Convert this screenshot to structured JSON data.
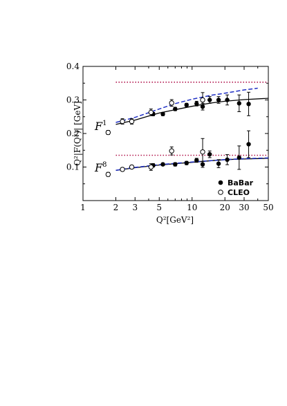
{
  "chart_data": {
    "type": "scatter",
    "xscale": "log",
    "xlim": [
      1,
      50
    ],
    "ylim": [
      0,
      0.4
    ],
    "x_ticks": [
      1,
      2,
      3,
      5,
      10,
      20,
      30,
      50
    ],
    "x_tick_labels": [
      "1",
      "2",
      "3",
      "5",
      "10",
      "20",
      "30",
      "50"
    ],
    "y_ticks": [
      0.1,
      0.2,
      0.3,
      0.4
    ],
    "y_tick_labels": [
      "0.1",
      "0.2",
      "0.3",
      "0.4"
    ],
    "xlabel": "Q²[GeV²]",
    "ylabel": "Q²|F(Q²)| [GeV]",
    "annotations": [
      {
        "base": "F",
        "sup": "1",
        "text": "F¹"
      },
      {
        "base": "F",
        "sup": "8",
        "text": "F⁸"
      }
    ],
    "legend": {
      "placement": "lower-right",
      "entries": [
        {
          "label": "BaBar",
          "marker": "filled-circle"
        },
        {
          "label": "CLEO",
          "marker": "open-circle"
        }
      ]
    },
    "series": [
      {
        "name": "BaBar",
        "marker": "filled-circle",
        "group": "F1",
        "points": [
          {
            "x": 4.4,
            "y": 0.258,
            "err": 0.005
          },
          {
            "x": 5.4,
            "y": 0.258,
            "err": 0.005
          },
          {
            "x": 7.0,
            "y": 0.273,
            "err": 0.005
          },
          {
            "x": 8.9,
            "y": 0.285,
            "err": 0.005
          },
          {
            "x": 11.0,
            "y": 0.289,
            "err": 0.007
          },
          {
            "x": 12.5,
            "y": 0.28,
            "err": 0.01
          },
          {
            "x": 14.5,
            "y": 0.3,
            "err": 0.01
          },
          {
            "x": 17.5,
            "y": 0.3,
            "err": 0.01
          },
          {
            "x": 21.0,
            "y": 0.3,
            "err": 0.015
          },
          {
            "x": 27.0,
            "y": 0.29,
            "err": 0.025
          },
          {
            "x": 33.0,
            "y": 0.288,
            "err": 0.035
          }
        ]
      },
      {
        "name": "CLEO",
        "marker": "open-circle",
        "group": "F1",
        "points": [
          {
            "x": 1.7,
            "y": 0.203,
            "err": 0.006
          },
          {
            "x": 2.3,
            "y": 0.236,
            "err": 0.008
          },
          {
            "x": 2.8,
            "y": 0.236,
            "err": 0.008
          },
          {
            "x": 4.2,
            "y": 0.263,
            "err": 0.01
          },
          {
            "x": 6.5,
            "y": 0.291,
            "err": 0.01
          },
          {
            "x": 12.5,
            "y": 0.3,
            "err": 0.022
          }
        ]
      },
      {
        "name": "BaBar",
        "marker": "filled-circle",
        "group": "F8",
        "points": [
          {
            "x": 4.4,
            "y": 0.105,
            "err": 0.005
          },
          {
            "x": 5.4,
            "y": 0.108,
            "err": 0.004
          },
          {
            "x": 7.0,
            "y": 0.108,
            "err": 0.005
          },
          {
            "x": 8.9,
            "y": 0.112,
            "err": 0.005
          },
          {
            "x": 11.0,
            "y": 0.12,
            "err": 0.006
          },
          {
            "x": 12.5,
            "y": 0.108,
            "err": 0.009
          },
          {
            "x": 14.5,
            "y": 0.138,
            "err": 0.01
          },
          {
            "x": 17.5,
            "y": 0.11,
            "err": 0.012
          },
          {
            "x": 21.0,
            "y": 0.122,
            "err": 0.015
          },
          {
            "x": 27.0,
            "y": 0.128,
            "err": 0.035
          },
          {
            "x": 33.0,
            "y": 0.168,
            "err": 0.04
          }
        ]
      },
      {
        "name": "CLEO",
        "marker": "open-circle",
        "group": "F8",
        "points": [
          {
            "x": 1.7,
            "y": 0.078,
            "err": 0.006
          },
          {
            "x": 2.3,
            "y": 0.093,
            "err": 0.005
          },
          {
            "x": 2.8,
            "y": 0.1,
            "err": 0.005
          },
          {
            "x": 4.2,
            "y": 0.1,
            "err": 0.01
          },
          {
            "x": 6.5,
            "y": 0.148,
            "err": 0.012
          },
          {
            "x": 12.5,
            "y": 0.145,
            "err": 0.04
          }
        ]
      },
      {
        "name": "",
        "style": "solid-black",
        "x": [
          2,
          3,
          4,
          5,
          7,
          10,
          15,
          20,
          30,
          50
        ],
        "y": [
          0.227,
          0.24,
          0.252,
          0.261,
          0.271,
          0.281,
          0.291,
          0.296,
          0.301,
          0.305
        ]
      },
      {
        "name": "",
        "style": "dashed-blue",
        "x": [
          2,
          3,
          4,
          5,
          7,
          10,
          15,
          20,
          30,
          40
        ],
        "y": [
          0.233,
          0.248,
          0.262,
          0.273,
          0.289,
          0.302,
          0.314,
          0.32,
          0.33,
          0.335
        ]
      },
      {
        "name": "",
        "style": "dotted-red",
        "x": [
          2,
          50
        ],
        "y": [
          0.353,
          0.353
        ]
      },
      {
        "name": "",
        "style": "solid-black",
        "x": [
          2,
          3,
          5,
          7,
          10,
          15,
          20,
          30,
          50
        ],
        "y": [
          0.09,
          0.098,
          0.106,
          0.11,
          0.114,
          0.119,
          0.122,
          0.124,
          0.126
        ]
      },
      {
        "name": "",
        "style": "dashed-blue",
        "x": [
          2,
          3,
          5,
          7,
          10,
          15,
          20,
          30,
          50
        ],
        "y": [
          0.09,
          0.099,
          0.107,
          0.111,
          0.115,
          0.119,
          0.122,
          0.125,
          0.127
        ]
      },
      {
        "name": "",
        "style": "dotted-red",
        "x": [
          2,
          50
        ],
        "y": [
          0.135,
          0.135
        ]
      }
    ]
  }
}
